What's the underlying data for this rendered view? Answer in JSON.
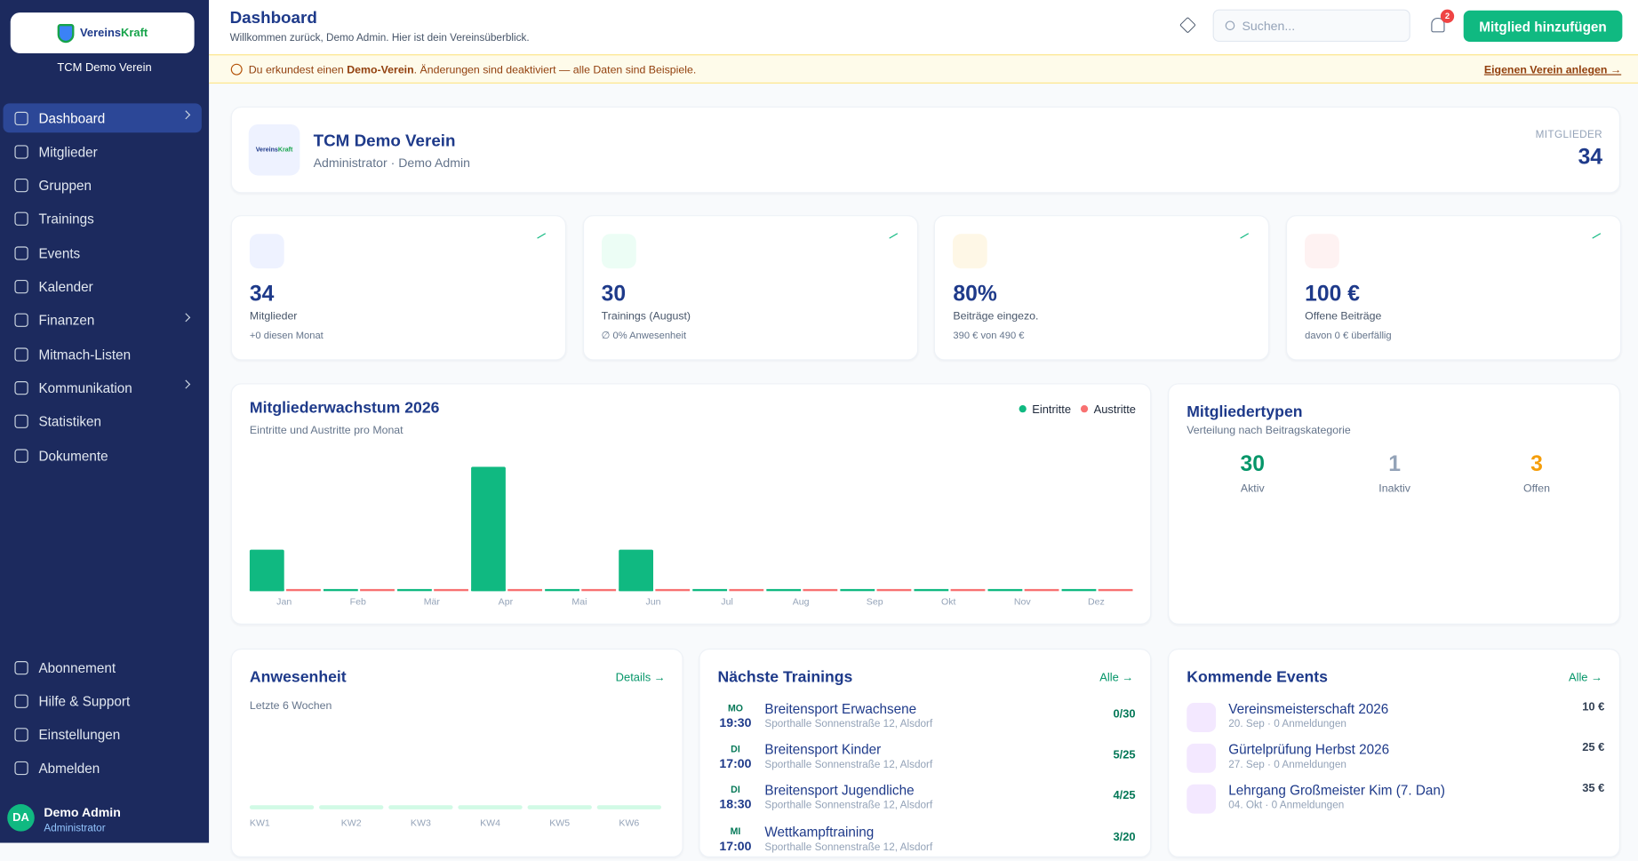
{
  "sidebar": {
    "brand": [
      "Vereins",
      "Kraft"
    ],
    "club": "TCM Demo Verein",
    "nav": [
      {
        "label": "Dashboard",
        "active": true,
        "submenu": true
      },
      {
        "label": "Mitglieder"
      },
      {
        "label": "Gruppen"
      },
      {
        "label": "Trainings"
      },
      {
        "label": "Events"
      },
      {
        "label": "Kalender"
      },
      {
        "label": "Finanzen",
        "submenu": true
      },
      {
        "label": "Mitmach-Listen"
      },
      {
        "label": "Kommunikation",
        "submenu": true
      },
      {
        "label": "Statistiken"
      },
      {
        "label": "Dokumente"
      }
    ],
    "bottom_nav": [
      {
        "label": "Abonnement"
      },
      {
        "label": "Hilfe & Support"
      },
      {
        "label": "Einstellungen"
      },
      {
        "label": "Abmelden"
      }
    ],
    "user": {
      "initials": "DA",
      "name": "Demo Admin",
      "role": "Administrator"
    }
  },
  "header": {
    "title": "Dashboard",
    "subtitle": "Willkommen zurück, Demo Admin. Hier ist dein Vereinsüberblick.",
    "search_placeholder": "Suchen...",
    "notifications": 2,
    "add_button": "Mitglied hinzufügen"
  },
  "banner": {
    "text_before": "Du erkundest einen ",
    "highlight": "Demo-Verein",
    "text_after": ". Änderungen sind deaktiviert — alle Daten sind Beispiele.",
    "link": "Eigenen Verein anlegen →"
  },
  "club_card": {
    "name": "TCM Demo Verein",
    "role": "Administrator · Demo Admin",
    "members_label": "MITGLIEDER",
    "members": 34
  },
  "stats": [
    {
      "value": "34",
      "label": "Mitglieder",
      "sub": "+0 diesen Monat"
    },
    {
      "value": "30",
      "label": "Trainings (August)",
      "sub": "∅ 0% Anwesenheit"
    },
    {
      "value": "80%",
      "label": "Beiträge eingezo.",
      "sub": "390 € von 490 €"
    },
    {
      "value": "100 €",
      "label": "Offene Beiträge",
      "sub": "davon 0 € überfällig"
    }
  ],
  "chart_data": [
    {
      "type": "bar",
      "title": "Mitgliederwachstum 2026",
      "subtitle": "Eintritte und Austritte pro Monat",
      "categories": [
        "Jan",
        "Feb",
        "Mär",
        "Apr",
        "Mai",
        "Jun",
        "Jul",
        "Aug",
        "Sep",
        "Okt",
        "Nov",
        "Dez"
      ],
      "series": [
        {
          "name": "Eintritte",
          "color": "#10b981",
          "values": [
            3,
            0,
            0,
            9,
            0,
            3,
            0,
            0,
            0,
            0,
            0,
            0
          ]
        },
        {
          "name": "Austritte",
          "color": "#f87171",
          "values": [
            0,
            0,
            0,
            0,
            0,
            0,
            0,
            0,
            0,
            0,
            0,
            0
          ]
        }
      ],
      "legend": "top-right"
    },
    {
      "type": "bar",
      "title": "Anwesenheit",
      "subtitle": "Letzte 6 Wochen",
      "action": "Details →",
      "categories": [
        "KW1",
        "KW2",
        "KW3",
        "KW4",
        "KW5",
        "KW6"
      ],
      "values": [
        0,
        0,
        0,
        0,
        0,
        0
      ],
      "color": "#10b981",
      "ylim": [
        0,
        100
      ]
    }
  ],
  "member_types": {
    "title": "Mitgliedertypen",
    "subtitle": "Verteilung nach Beitragskategorie",
    "items": [
      {
        "value": 30,
        "label": "Aktiv",
        "color": "#059669"
      },
      {
        "value": 1,
        "label": "Inaktiv",
        "color": "#94a3b8"
      },
      {
        "value": 3,
        "label": "Offen",
        "color": "#f59e0b"
      }
    ]
  },
  "trainings": {
    "title": "Nächste Trainings",
    "action": "Alle →",
    "items": [
      {
        "day": "MO",
        "time": "19:30",
        "name": "Breitensport Erwachsene",
        "location": "Sporthalle Sonnenstraße 12, Alsdorf",
        "count": "0/30"
      },
      {
        "day": "DI",
        "time": "17:00",
        "name": "Breitensport Kinder",
        "location": "Sporthalle Sonnenstraße 12, Alsdorf",
        "count": "5/25"
      },
      {
        "day": "DI",
        "time": "18:30",
        "name": "Breitensport Jugendliche",
        "location": "Sporthalle Sonnenstraße 12, Alsdorf",
        "count": "4/25"
      },
      {
        "day": "MI",
        "time": "17:00",
        "name": "Wettkampftraining",
        "location": "Sporthalle Sonnenstraße 12, Alsdorf",
        "count": "3/20"
      }
    ]
  },
  "events": {
    "title": "Kommende Events",
    "action": "Alle →",
    "items": [
      {
        "name": "Vereinsmeisterschaft 2026",
        "meta": "20. Sep · 0 Anmeldungen",
        "price": "10 €"
      },
      {
        "name": "Gürtelprüfung Herbst 2026",
        "meta": "27. Sep · 0 Anmeldungen",
        "price": "25 €"
      },
      {
        "name": "Lehrgang Großmeister Kim (7. Dan)",
        "meta": "04. Okt · 0 Anmeldungen",
        "price": "35 €"
      }
    ]
  }
}
